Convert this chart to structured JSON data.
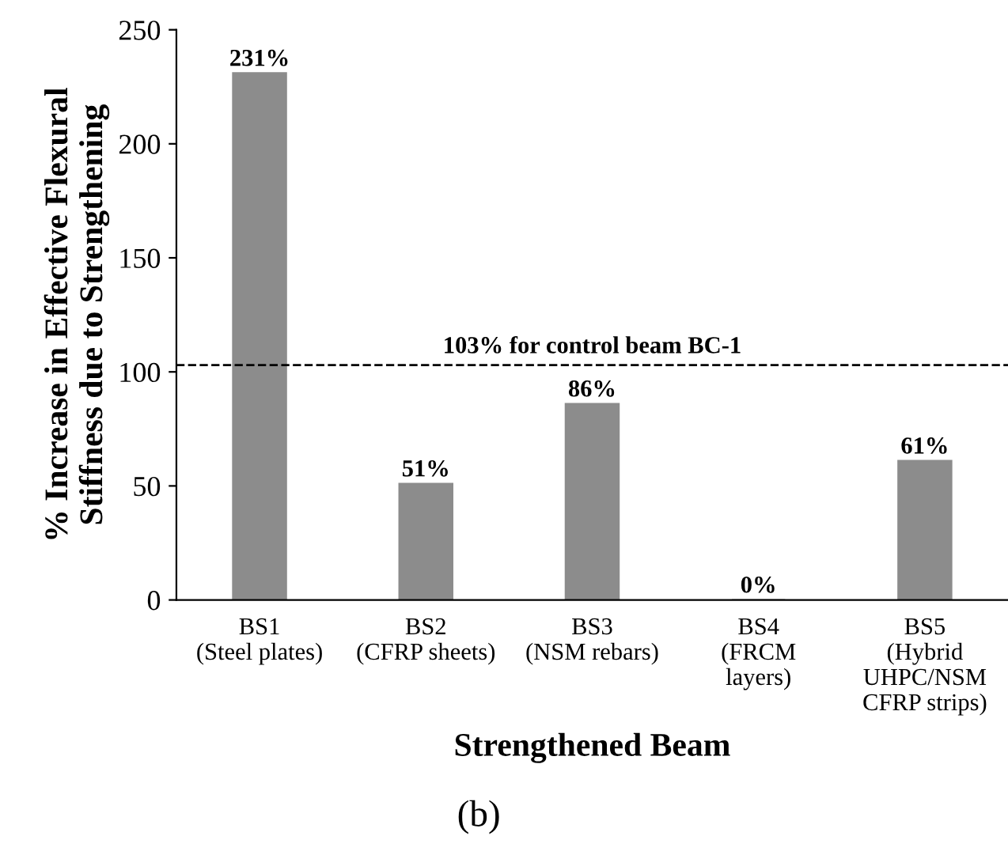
{
  "chart_data": {
    "type": "bar",
    "categories": [
      "BS1\n(Steel plates)",
      "BS2\n(CFRP sheets)",
      "BS3\n(NSM rebars)",
      "BS4\n(FRCM\nlayers)",
      "BS5\n(Hybrid\nUHPC/NSM\nCFRP strips)"
    ],
    "values": [
      231,
      51,
      86,
      0,
      61
    ],
    "value_labels": [
      "231%",
      "51%",
      "86%",
      "0%",
      "61%"
    ],
    "color": "#8c8c8c",
    "xlabel": "Strengthened Beam",
    "ylabel": "% Increase in Effective Flexural\nStiffness due to Strengthening",
    "ylim": [
      0,
      250
    ],
    "yticks": [
      0,
      50,
      100,
      150,
      200,
      250
    ],
    "ref_lines": [
      {
        "axis": "y",
        "value": 103,
        "label": "103% for control beam BC-1",
        "line_style": "dashed",
        "color": "#000000"
      }
    ],
    "annotations": [
      "(b)"
    ],
    "grid": false
  }
}
